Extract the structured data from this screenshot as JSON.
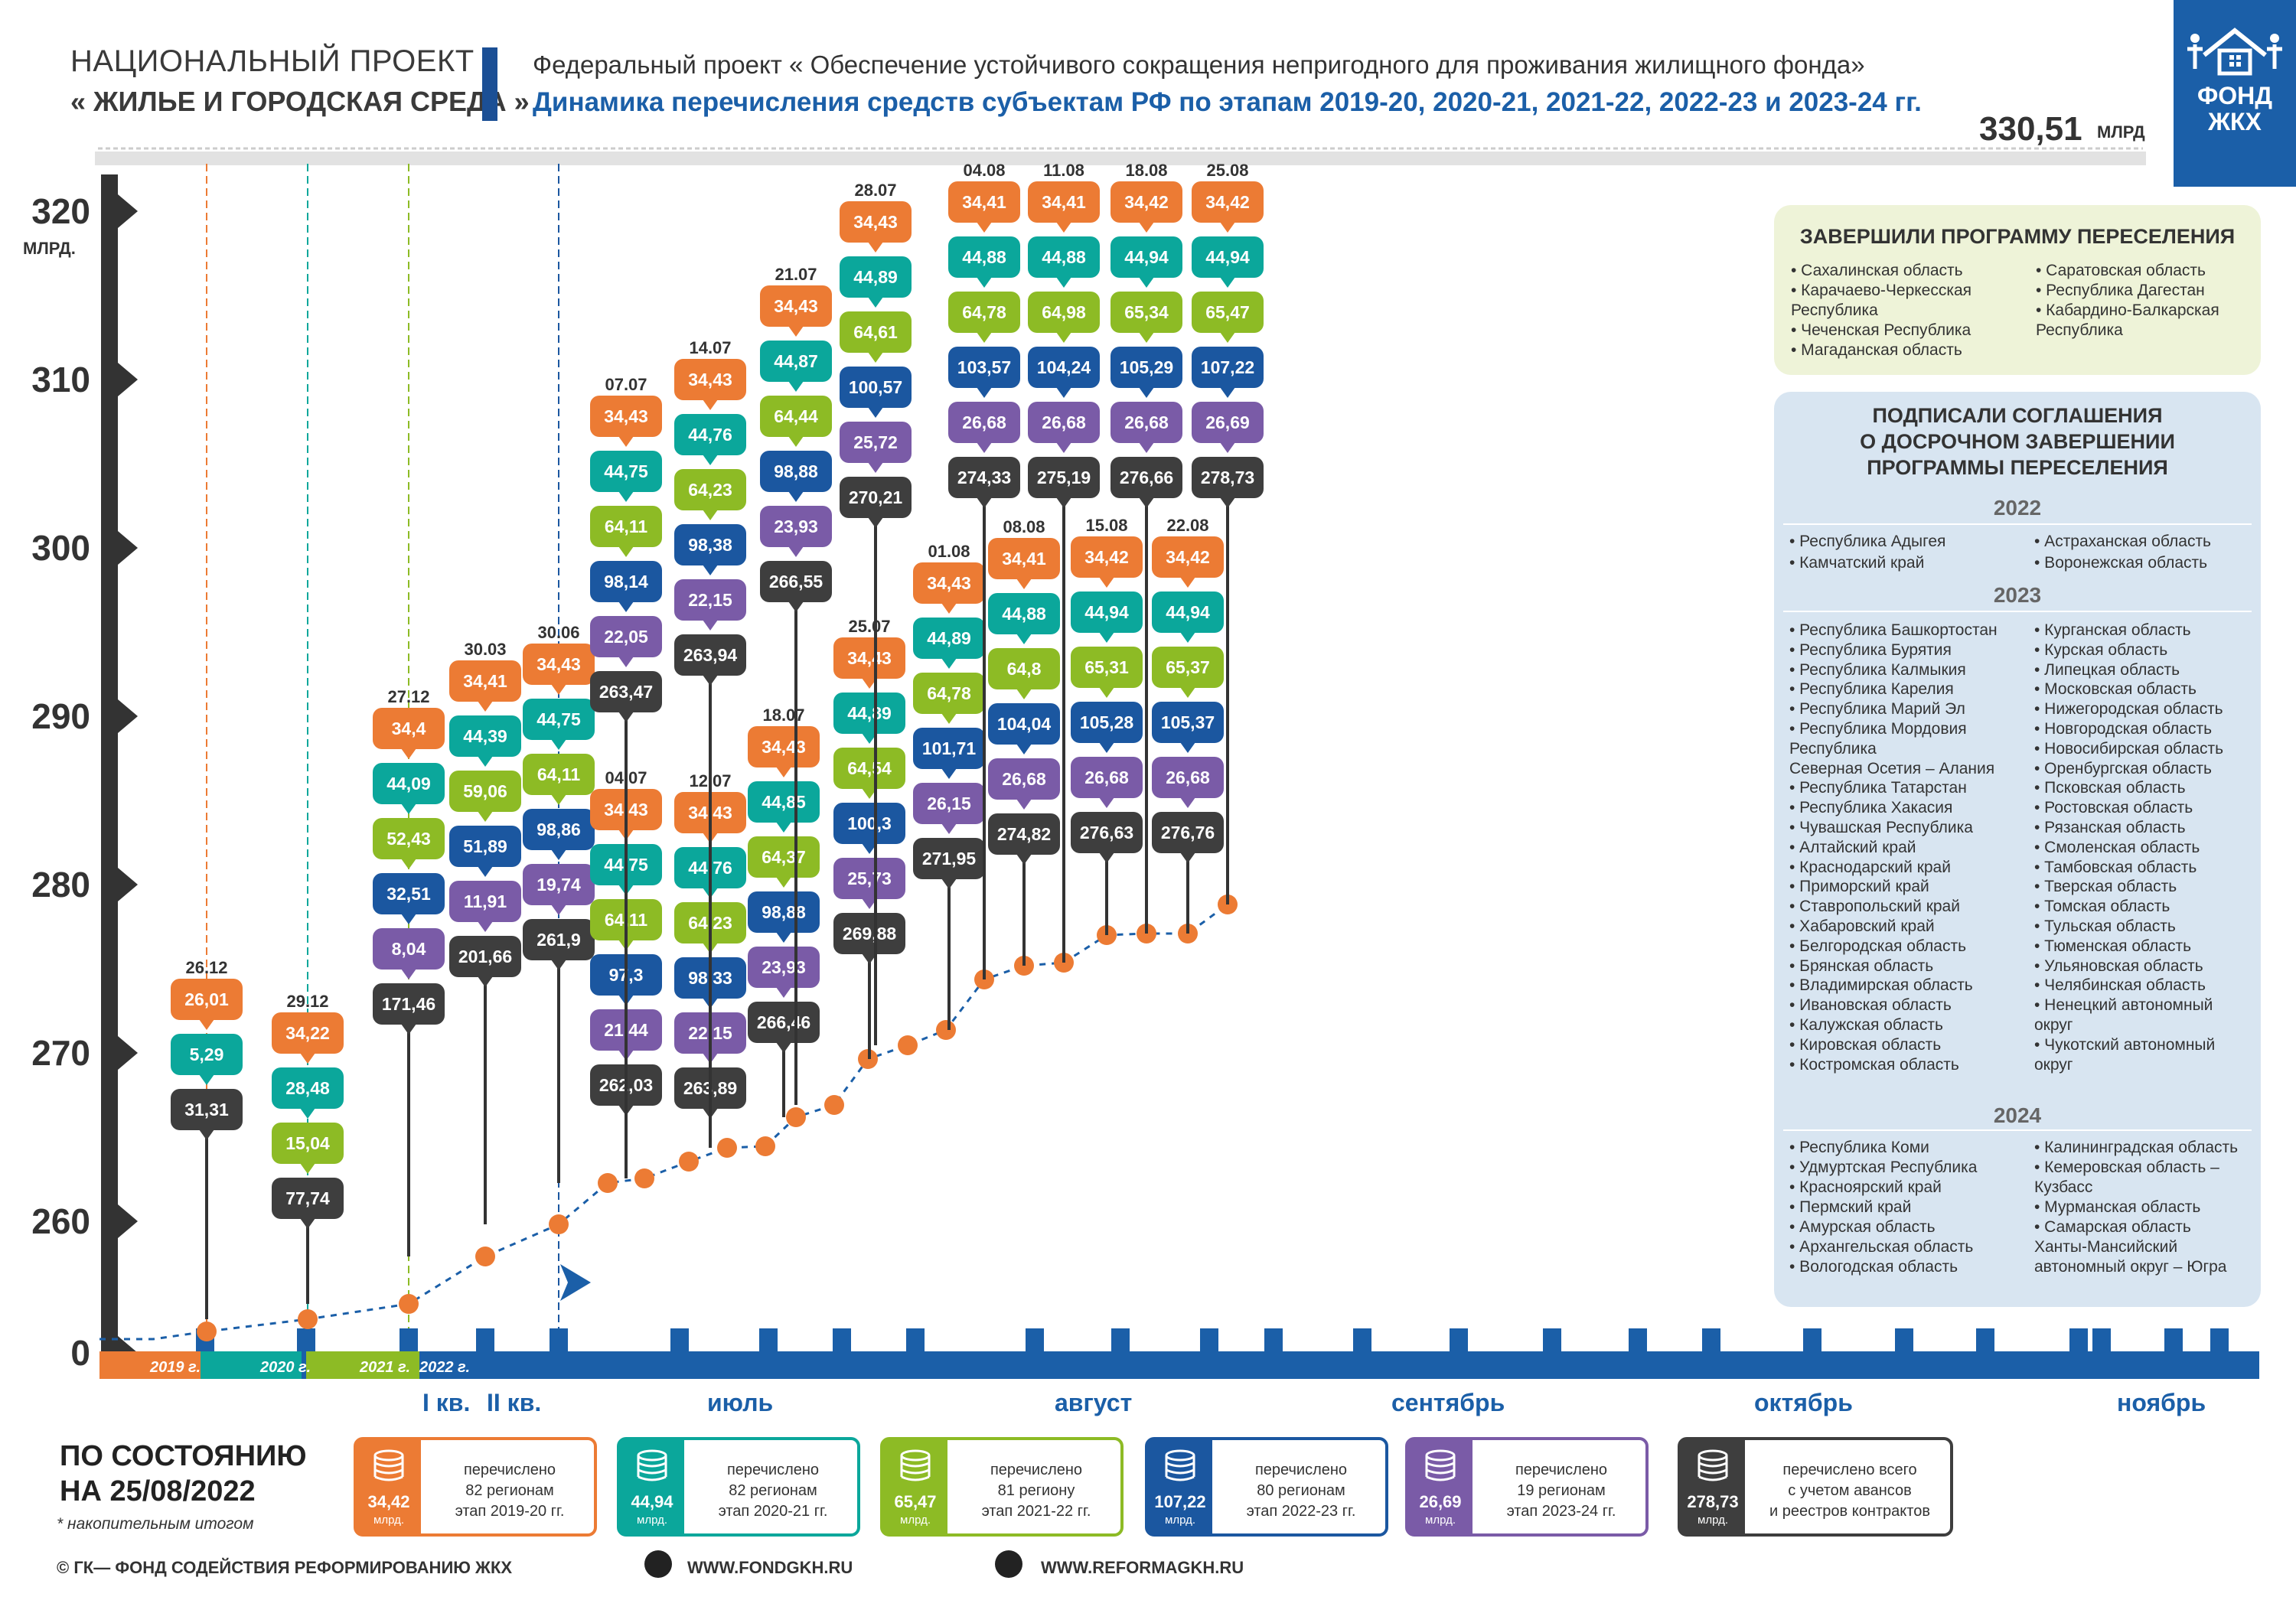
{
  "header": {
    "project_line1": "НАЦИОНАЛЬНЫЙ ПРОЕКТ",
    "project_line2": "« ЖИЛЬЕ И  ГОРОДСКАЯ СРЕДА »",
    "federal": "Федеральный проект « Обеспечение устойчивого сокращения непригодного для проживания жилищного фонда»",
    "dynamics": "Динамика перечисления средств субъектам РФ по этапам 2019-20, 2020-21, 2021-22, 2022-23 и 2023-24 гг.",
    "total_value": "330,51",
    "total_unit": "МЛРД",
    "logo_text_1": "ФОНД",
    "logo_text_2": "ЖКХ"
  },
  "colors": {
    "orange": "#ec7b34",
    "teal": "#0ba79b",
    "green": "#8dbb25",
    "blue": "#1b57a0",
    "purple": "#7a5ba7",
    "dark": "#3e3e3e",
    "axis": "#1b5fa8",
    "trend": "#ec7b34"
  },
  "chart_data": {
    "type": "stacked-timeline",
    "title": "Динамика перечисления средств субъектам РФ по этапам 2019-20, 2020-21, 2021-22, 2022-23 и 2023-24 гг.",
    "y_ticks": [
      {
        "label": "0",
        "value": 0
      },
      {
        "label": "260",
        "value": 260
      },
      {
        "label": "270",
        "value": 270
      },
      {
        "label": "280",
        "value": 280
      },
      {
        "label": "290",
        "value": 290
      },
      {
        "label": "300",
        "value": 300
      },
      {
        "label": "310",
        "value": 310
      },
      {
        "label": "320",
        "value": 320
      }
    ],
    "y_unit": "МЛРД.",
    "series_names": [
      "этап 2019-20 гг.",
      "этап 2020-21 гг.",
      "этап 2021-22 гг.",
      "этап 2022-23 гг.",
      "этап 2023-24 гг.",
      "перечислено всего"
    ],
    "period_labels": [
      "2019 г.",
      "2020 г.",
      "2021 г.",
      "2022 г."
    ],
    "quarter_labels": [
      "I кв.",
      "II кв."
    ],
    "month_labels": [
      "июль",
      "август",
      "сентябрь",
      "октябрь",
      "ноябрь"
    ],
    "columns": [
      {
        "date": "26.12",
        "values": [
          "26,01",
          "5,29",
          "31,31"
        ],
        "colors": [
          "orange",
          "teal",
          "dark"
        ]
      },
      {
        "date": "29.12",
        "values": [
          "34,22",
          "28,48",
          "15,04",
          "77,74"
        ],
        "colors": [
          "orange",
          "teal",
          "green",
          "dark"
        ]
      },
      {
        "date": "27.12",
        "values": [
          "34,4",
          "44,09",
          "52,43",
          "32,51",
          "8,04",
          "171,46"
        ],
        "colors": [
          "orange",
          "teal",
          "green",
          "blue",
          "purple",
          "dark"
        ]
      },
      {
        "date": "30.03",
        "values": [
          "34,41",
          "44,39",
          "59,06",
          "51,89",
          "11,91",
          "201,66"
        ],
        "colors": [
          "orange",
          "teal",
          "green",
          "blue",
          "purple",
          "dark"
        ]
      },
      {
        "date": "30.06",
        "values": [
          "34,43",
          "44,75",
          "64,11",
          "98,86",
          "19,74",
          "261,9"
        ],
        "colors": [
          "orange",
          "teal",
          "green",
          "blue",
          "purple",
          "dark"
        ]
      },
      {
        "date": "04.07",
        "values": [
          "34,43",
          "44,75",
          "64,11",
          "97,3",
          "21,44",
          "262,03"
        ],
        "colors": [
          "orange",
          "teal",
          "green",
          "blue",
          "purple",
          "dark"
        ]
      },
      {
        "date": "07.07",
        "values": [
          "34,43",
          "44,75",
          "64,11",
          "98,14",
          "22,05",
          "263,47"
        ],
        "colors": [
          "orange",
          "teal",
          "green",
          "blue",
          "purple",
          "dark"
        ]
      },
      {
        "date": "12.07",
        "values": [
          "34,43",
          "44,76",
          "64,23",
          "98,33",
          "22,15",
          "263,89"
        ],
        "colors": [
          "orange",
          "teal",
          "green",
          "blue",
          "purple",
          "dark"
        ]
      },
      {
        "date": "14.07",
        "values": [
          "34,43",
          "44,76",
          "64,23",
          "98,38",
          "22,15",
          "263,94"
        ],
        "colors": [
          "orange",
          "teal",
          "green",
          "blue",
          "purple",
          "dark"
        ]
      },
      {
        "date": "18.07",
        "values": [
          "34,43",
          "44,85",
          "64,37",
          "98,88",
          "23,93",
          "266,46"
        ],
        "colors": [
          "orange",
          "teal",
          "green",
          "blue",
          "purple",
          "dark"
        ]
      },
      {
        "date": "21.07",
        "values": [
          "34,43",
          "44,87",
          "64,44",
          "98,88",
          "23,93",
          "266,55"
        ],
        "colors": [
          "orange",
          "teal",
          "green",
          "blue",
          "purple",
          "dark"
        ]
      },
      {
        "date": "25.07",
        "values": [
          "34,43",
          "44,89",
          "64,54",
          "100,3",
          "25,73",
          "269,88"
        ],
        "colors": [
          "orange",
          "teal",
          "green",
          "blue",
          "purple",
          "dark"
        ]
      },
      {
        "date": "28.07",
        "values": [
          "34,43",
          "44,89",
          "64,61",
          "100,57",
          "25,72",
          "270,21"
        ],
        "colors": [
          "orange",
          "teal",
          "green",
          "blue",
          "purple",
          "dark"
        ]
      },
      {
        "date": "01.08",
        "values": [
          "34,43",
          "44,89",
          "64,78",
          "101,71",
          "26,15",
          "271,95"
        ],
        "colors": [
          "orange",
          "teal",
          "green",
          "blue",
          "purple",
          "dark"
        ]
      },
      {
        "date": "04.08",
        "values": [
          "34,41",
          "44,88",
          "64,78",
          "103,57",
          "26,68",
          "274,33"
        ],
        "colors": [
          "orange",
          "teal",
          "green",
          "blue",
          "purple",
          "dark"
        ]
      },
      {
        "date": "08.08",
        "values": [
          "34,41",
          "44,88",
          "64,8",
          "104,04",
          "26,68",
          "274,82"
        ],
        "colors": [
          "orange",
          "teal",
          "green",
          "blue",
          "purple",
          "dark"
        ]
      },
      {
        "date": "11.08",
        "values": [
          "34,41",
          "44,88",
          "64,98",
          "104,24",
          "26,68",
          "275,19"
        ],
        "colors": [
          "orange",
          "teal",
          "green",
          "blue",
          "purple",
          "dark"
        ]
      },
      {
        "date": "15.08",
        "values": [
          "34,42",
          "44,94",
          "65,31",
          "105,28",
          "26,68",
          "276,63"
        ],
        "colors": [
          "orange",
          "teal",
          "green",
          "blue",
          "purple",
          "dark"
        ]
      },
      {
        "date": "18.08",
        "values": [
          "34,42",
          "44,94",
          "65,34",
          "105,29",
          "26,68",
          "276,66"
        ],
        "colors": [
          "orange",
          "teal",
          "green",
          "blue",
          "purple",
          "dark"
        ]
      },
      {
        "date": "22.08",
        "values": [
          "34,42",
          "44,94",
          "65,37",
          "105,37",
          "26,68",
          "276,76"
        ],
        "colors": [
          "orange",
          "teal",
          "green",
          "blue",
          "purple",
          "dark"
        ]
      },
      {
        "date": "25.08",
        "values": [
          "34,42",
          "44,94",
          "65,47",
          "107,22",
          "26,69",
          "278,73"
        ],
        "colors": [
          "orange",
          "teal",
          "green",
          "blue",
          "purple",
          "dark"
        ]
      }
    ]
  },
  "completed": {
    "title": "ЗАВЕРШИЛИ  ПРОГРАММУ  ПЕРЕСЕЛЕНИЯ",
    "col1": [
      "Сахалинская область",
      "Карачаево-Черкесская",
      "Республика",
      "Чеченская Республика",
      "Магаданская область"
    ],
    "col2": [
      "Саратовская область",
      "Республика Дагестан",
      "Кабардино-Балкарская",
      "Республика"
    ]
  },
  "agreements": {
    "title1": "ПОДПИСАЛИ  СОГЛАШЕНИЯ",
    "title2": "О  ДОСРОЧНОМ  ЗАВЕРШЕНИИ",
    "title3": "ПРОГРАММЫ  ПЕРЕСЕЛЕНИЯ",
    "y2022": "2022",
    "y2022_col1": [
      "Республика Адыгея",
      "Камчатский край"
    ],
    "y2022_col2": [
      "Астраханская область",
      "Воронежская область"
    ],
    "y2023": "2023",
    "y2023_col1": [
      "Республика Башкортостан",
      "Республика Бурятия",
      "Республика Калмыкия",
      "Республика Карелия",
      "Республика Марий Эл",
      "Республика Мордовия",
      "Республика",
      "Северная Осетия – Алания",
      "Республика Татарстан",
      "Республика Хакасия",
      "Чувашская Республика",
      "Алтайский край",
      "Краснодарский край",
      "Приморский край",
      "Ставропольский край",
      "Хабаровский край",
      "Белгородская область",
      "Брянская область",
      "Владимирская область",
      "Ивановская область",
      "Калужская область",
      "Кировская область",
      "Костромская область"
    ],
    "y2023_col2": [
      "Курганская область",
      "Курская область",
      "Липецкая область",
      "Московская область",
      "Нижегородская область",
      "Новгородская область",
      "Новосибирская область",
      "Оренбургская область",
      "Псковская область",
      "Ростовская область",
      "Рязанская область",
      "Смоленская область",
      "Тамбовская область",
      "Тверская область",
      "Томская область",
      "Тульская область",
      "Тюменская область",
      "Ульяновская область",
      "Челябинская область",
      "Ненецкий автономный",
      "округ",
      "Чукотский автономный",
      "округ"
    ],
    "y2024": "2024",
    "y2024_col1": [
      "Республика Коми",
      "Удмуртская Республика",
      "Красноярский край",
      "Пермский край",
      "Амурская область",
      "Архангельская область",
      "Вологодская область"
    ],
    "y2024_col2": [
      "Калининградская область",
      "Кемеровская область –",
      "Кузбасс",
      "Мурманская область",
      "Самарская область",
      "Ханты-Мансийский",
      "автономный округ – Югра"
    ]
  },
  "asof": {
    "line1": "ПО СОСТОЯНИЮ",
    "line2": "НА  25/08/2022",
    "note": "* накопительным итогом"
  },
  "legend": [
    {
      "value": "34,42",
      "unit": "млрд.",
      "text": "перечислено\n82 регионам\nэтап 2019-20 гг.",
      "color": "orange"
    },
    {
      "value": "44,94",
      "unit": "млрд.",
      "text": "перечислено\n82 регионам\nэтап 2020-21 гг.",
      "color": "teal"
    },
    {
      "value": "65,47",
      "unit": "млрд.",
      "text": "перечислено\n81 региону\nэтап 2021-22 гг.",
      "color": "green"
    },
    {
      "value": "107,22",
      "unit": "млрд.",
      "text": "перечислено\n80 регионам\nэтап 2022-23 гг.",
      "color": "blue"
    },
    {
      "value": "26,69",
      "unit": "млрд.",
      "text": "перечислено\n19 регионам\nэтап 2023-24 гг.",
      "color": "purple"
    },
    {
      "value": "278,73",
      "unit": "млрд.",
      "text": "перечислено всего\nс учетом авансов\nи реестров контрактов",
      "color": "dark"
    }
  ],
  "footer": {
    "copyright": "©  ГК— ФОНД СОДЕЙСТВИЯ РЕФОРМИРОВАНИЮ ЖКХ",
    "site1": "WWW.FONDGKH.RU",
    "site2": "WWW.REFORMAGKH.RU"
  }
}
